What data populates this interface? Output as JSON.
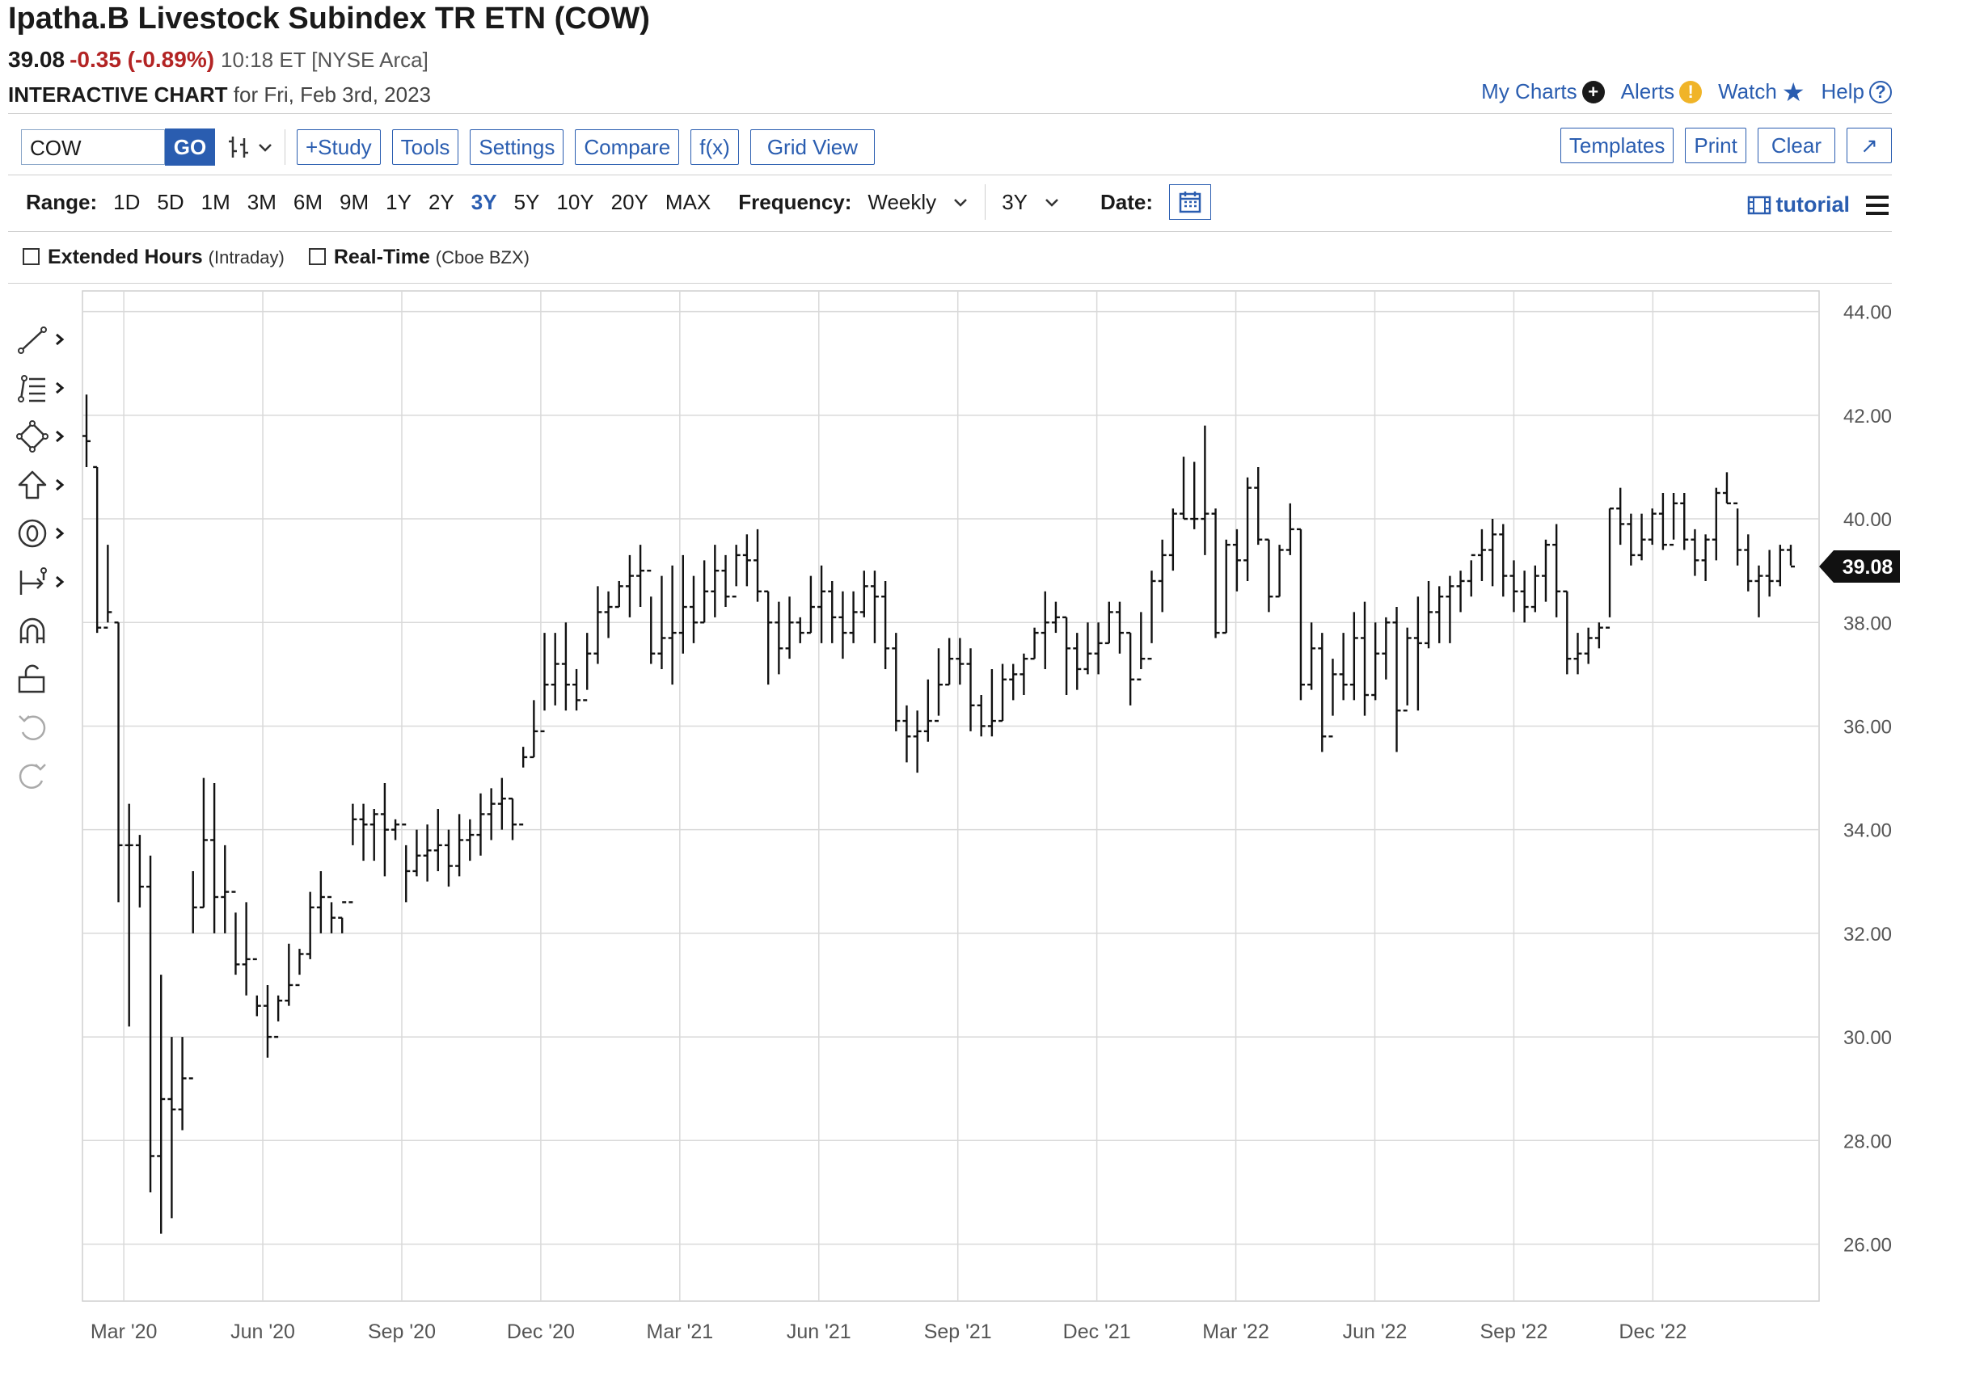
{
  "header": {
    "title": "Ipatha.B Livestock Subindex TR ETN (COW)",
    "last": "39.08",
    "change": "-0.35 (-0.89%)",
    "meta": "10:18 ET [NYSE Arca]",
    "chart_label": "INTERACTIVE CHART",
    "chart_date": "for Fri, Feb 3rd, 2023"
  },
  "links": {
    "my_charts": "My Charts",
    "alerts": "Alerts",
    "watch": "Watch",
    "help": "Help",
    "plus_glyph": "+",
    "alert_glyph": "!",
    "help_glyph": "?"
  },
  "toolbar": {
    "symbol": "COW",
    "go": "GO",
    "study": "+Study",
    "tools": "Tools",
    "settings": "Settings",
    "compare": "Compare",
    "fx": "f(x)",
    "grid_view": "Grid View",
    "templates": "Templates",
    "print": "Print",
    "clear": "Clear",
    "expand": "↗"
  },
  "range": {
    "label": "Range:",
    "options": [
      "1D",
      "5D",
      "1M",
      "3M",
      "6M",
      "9M",
      "1Y",
      "2Y",
      "3Y",
      "5Y",
      "10Y",
      "20Y",
      "MAX"
    ],
    "selected": "3Y",
    "frequency_label": "Frequency:",
    "frequency": "Weekly",
    "period": "3Y",
    "date_label": "Date:",
    "tutorial": "tutorial"
  },
  "options": {
    "extended": "Extended Hours",
    "extended_note": "(Intraday)",
    "realtime": "Real-Time",
    "realtime_note": "(Cboe BZX)"
  },
  "icons": [
    "line-tool-icon",
    "fibonacci-icon",
    "shapes-icon",
    "arrow-icon",
    "text-marker-icon",
    "measure-icon",
    "magnet-icon",
    "lock-icon",
    "undo-icon",
    "redo-icon"
  ],
  "colors": {
    "accent": "#2a5db0",
    "negative": "#b32424",
    "bar": "#111111",
    "grid": "#d9d9d9"
  },
  "chart_data": {
    "type": "ohlc",
    "frequency": "weekly",
    "x_labels": [
      "Mar '20",
      "Jun '20",
      "Sep '20",
      "Dec '20",
      "Mar '21",
      "Jun '21",
      "Sep '21",
      "Dec '21",
      "Mar '22",
      "Jun '22",
      "Sep '22",
      "Dec '22"
    ],
    "y_ticks": [
      "44.00",
      "42.00",
      "40.00",
      "38.00",
      "36.00",
      "34.00",
      "32.00",
      "30.00",
      "28.00",
      "26.00"
    ],
    "ylim": [
      24.9,
      44.4
    ],
    "last_price_label": "39.08",
    "grid": true,
    "bars": [
      [
        41.6,
        42.4,
        41.0,
        41.5
      ],
      [
        41.0,
        41.0,
        37.8,
        37.9
      ],
      [
        37.9,
        39.5,
        38.0,
        38.2
      ],
      [
        38.0,
        38.0,
        32.6,
        33.7
      ],
      [
        33.7,
        34.5,
        30.2,
        33.7
      ],
      [
        33.7,
        33.9,
        32.5,
        32.9
      ],
      [
        32.9,
        33.5,
        27.0,
        27.7
      ],
      [
        27.7,
        31.2,
        26.2,
        28.8
      ],
      [
        28.8,
        30.0,
        26.5,
        28.6
      ],
      [
        28.6,
        30.0,
        28.2,
        29.2
      ],
      [
        29.2,
        33.2,
        32.0,
        32.5
      ],
      [
        32.5,
        35.0,
        32.5,
        33.8
      ],
      [
        33.8,
        34.9,
        32.0,
        32.7
      ],
      [
        32.7,
        33.7,
        32.0,
        32.8
      ],
      [
        32.8,
        32.4,
        31.2,
        31.4
      ],
      [
        31.4,
        32.6,
        30.8,
        31.5
      ],
      [
        31.5,
        30.8,
        30.4,
        30.6
      ],
      [
        30.6,
        31.0,
        29.6,
        30.0
      ],
      [
        30.0,
        30.8,
        30.3,
        30.7
      ],
      [
        30.7,
        31.8,
        30.6,
        31.0
      ],
      [
        31.0,
        31.7,
        31.2,
        31.6
      ],
      [
        31.6,
        32.8,
        31.5,
        32.5
      ],
      [
        32.5,
        33.2,
        32.0,
        32.7
      ],
      [
        32.7,
        32.6,
        32.0,
        32.3
      ],
      [
        32.3,
        32.3,
        32.0,
        32.6
      ],
      [
        32.6,
        34.5,
        33.7,
        34.2
      ],
      [
        34.2,
        34.5,
        33.4,
        34.1
      ],
      [
        34.1,
        34.4,
        33.4,
        34.3
      ],
      [
        34.3,
        34.9,
        33.1,
        34.0
      ],
      [
        34.0,
        34.2,
        33.8,
        34.1
      ],
      [
        34.1,
        33.7,
        32.6,
        33.2
      ],
      [
        33.2,
        34.0,
        33.1,
        33.5
      ],
      [
        33.5,
        34.1,
        33.0,
        33.6
      ],
      [
        33.6,
        34.4,
        33.2,
        33.7
      ],
      [
        33.7,
        34.0,
        32.9,
        33.3
      ],
      [
        33.3,
        34.3,
        33.1,
        33.8
      ],
      [
        33.8,
        34.2,
        33.4,
        33.9
      ],
      [
        33.9,
        34.7,
        33.5,
        34.3
      ],
      [
        34.3,
        34.8,
        33.8,
        34.5
      ],
      [
        34.5,
        35.0,
        34.0,
        34.6
      ],
      [
        34.6,
        34.6,
        33.8,
        34.1
      ],
      [
        34.1,
        35.6,
        35.2,
        35.4
      ],
      [
        35.4,
        36.5,
        35.4,
        35.9
      ],
      [
        35.9,
        37.8,
        36.3,
        36.8
      ],
      [
        36.8,
        37.8,
        36.4,
        37.2
      ],
      [
        37.2,
        38.0,
        36.3,
        36.8
      ],
      [
        36.8,
        37.1,
        36.3,
        36.5
      ],
      [
        36.5,
        37.8,
        36.7,
        37.4
      ],
      [
        37.4,
        38.7,
        37.2,
        38.2
      ],
      [
        38.2,
        38.6,
        37.7,
        38.3
      ],
      [
        38.3,
        38.8,
        38.3,
        38.7
      ],
      [
        38.7,
        39.3,
        38.1,
        38.9
      ],
      [
        38.9,
        39.5,
        38.3,
        39.0
      ],
      [
        39.0,
        38.5,
        37.2,
        37.4
      ],
      [
        37.4,
        38.9,
        37.1,
        37.7
      ],
      [
        37.7,
        39.1,
        36.8,
        37.8
      ],
      [
        37.8,
        39.3,
        37.4,
        38.3
      ],
      [
        38.3,
        38.9,
        37.6,
        38.0
      ],
      [
        38.0,
        39.2,
        38.0,
        38.6
      ],
      [
        38.6,
        39.5,
        38.1,
        39.0
      ],
      [
        39.0,
        39.3,
        38.3,
        38.5
      ],
      [
        38.5,
        39.5,
        38.7,
        39.3
      ],
      [
        39.3,
        39.7,
        38.7,
        39.2
      ],
      [
        39.2,
        39.8,
        38.4,
        38.6
      ],
      [
        38.6,
        38.6,
        36.8,
        38.0
      ],
      [
        38.0,
        38.4,
        37.0,
        37.5
      ],
      [
        37.5,
        38.5,
        37.3,
        38.0
      ],
      [
        38.0,
        38.1,
        37.6,
        37.8
      ],
      [
        37.8,
        38.9,
        37.8,
        38.3
      ],
      [
        38.3,
        39.1,
        37.6,
        38.6
      ],
      [
        38.6,
        38.8,
        37.6,
        38.1
      ],
      [
        38.1,
        38.6,
        37.3,
        37.8
      ],
      [
        37.8,
        38.6,
        37.6,
        38.2
      ],
      [
        38.2,
        39.0,
        38.1,
        38.7
      ],
      [
        38.7,
        39.0,
        37.6,
        38.5
      ],
      [
        38.5,
        38.8,
        37.1,
        37.5
      ],
      [
        37.5,
        37.8,
        35.9,
        36.1
      ],
      [
        36.1,
        36.4,
        35.3,
        35.8
      ],
      [
        35.8,
        36.3,
        35.1,
        35.9
      ],
      [
        35.9,
        36.9,
        35.7,
        36.1
      ],
      [
        36.1,
        37.5,
        36.2,
        36.8
      ],
      [
        36.8,
        37.7,
        36.8,
        37.3
      ],
      [
        37.3,
        37.7,
        36.8,
        37.2
      ],
      [
        37.2,
        37.5,
        35.9,
        36.4
      ],
      [
        36.4,
        36.6,
        35.8,
        36.0
      ],
      [
        36.0,
        37.1,
        35.8,
        36.1
      ],
      [
        36.1,
        37.2,
        36.1,
        36.9
      ],
      [
        36.9,
        37.2,
        36.5,
        37.0
      ],
      [
        37.0,
        37.4,
        36.6,
        37.3
      ],
      [
        37.3,
        37.9,
        37.3,
        37.8
      ],
      [
        37.8,
        38.6,
        37.1,
        38.0
      ],
      [
        38.0,
        38.4,
        37.8,
        38.1
      ],
      [
        38.1,
        38.1,
        36.6,
        37.5
      ],
      [
        37.5,
        37.8,
        36.7,
        37.1
      ],
      [
        37.1,
        38.0,
        37.0,
        37.4
      ],
      [
        37.4,
        38.0,
        37.0,
        37.6
      ],
      [
        37.6,
        38.4,
        37.6,
        38.2
      ],
      [
        38.2,
        38.4,
        37.4,
        37.8
      ],
      [
        37.8,
        37.8,
        36.4,
        36.9
      ],
      [
        36.9,
        38.2,
        37.1,
        37.3
      ],
      [
        37.3,
        39.0,
        37.6,
        38.8
      ],
      [
        38.8,
        39.6,
        38.2,
        39.3
      ],
      [
        39.3,
        40.2,
        39.0,
        40.1
      ],
      [
        40.1,
        41.2,
        40.0,
        40.0
      ],
      [
        40.0,
        41.1,
        39.8,
        40.0
      ],
      [
        40.0,
        41.8,
        39.3,
        40.1
      ],
      [
        40.1,
        40.2,
        37.7,
        37.8
      ],
      [
        37.8,
        39.6,
        37.8,
        39.5
      ],
      [
        39.5,
        39.8,
        38.6,
        39.2
      ],
      [
        39.2,
        40.8,
        38.8,
        40.6
      ],
      [
        40.6,
        41.0,
        39.5,
        39.6
      ],
      [
        39.6,
        39.6,
        38.2,
        38.5
      ],
      [
        38.5,
        39.5,
        38.5,
        39.4
      ],
      [
        39.4,
        40.3,
        39.3,
        39.8
      ],
      [
        39.8,
        39.8,
        36.5,
        36.8
      ],
      [
        36.8,
        38.0,
        36.7,
        37.5
      ],
      [
        37.5,
        37.8,
        35.5,
        35.8
      ],
      [
        35.8,
        37.3,
        36.2,
        37.0
      ],
      [
        37.0,
        37.8,
        36.5,
        36.8
      ],
      [
        36.8,
        38.2,
        36.5,
        37.7
      ],
      [
        37.7,
        38.4,
        36.2,
        36.6
      ],
      [
        36.6,
        38.0,
        36.5,
        37.4
      ],
      [
        37.4,
        38.1,
        36.9,
        38.0
      ],
      [
        38.0,
        38.3,
        35.5,
        36.3
      ],
      [
        36.3,
        37.9,
        36.4,
        37.7
      ],
      [
        37.7,
        38.5,
        36.3,
        37.6
      ],
      [
        37.6,
        38.8,
        37.5,
        38.2
      ],
      [
        38.2,
        38.7,
        37.6,
        38.5
      ],
      [
        38.5,
        38.9,
        37.6,
        38.7
      ],
      [
        38.7,
        39.0,
        38.2,
        38.8
      ],
      [
        38.8,
        39.2,
        38.5,
        39.3
      ],
      [
        39.3,
        39.8,
        38.8,
        39.4
      ],
      [
        39.4,
        40.0,
        38.7,
        39.7
      ],
      [
        39.7,
        39.9,
        38.5,
        38.9
      ],
      [
        38.9,
        39.2,
        38.2,
        38.6
      ],
      [
        38.6,
        39.0,
        38.0,
        38.3
      ],
      [
        38.3,
        39.1,
        38.2,
        38.9
      ],
      [
        38.9,
        39.6,
        38.4,
        39.5
      ],
      [
        39.5,
        39.9,
        38.1,
        38.6
      ],
      [
        38.6,
        38.6,
        37.0,
        37.3
      ],
      [
        37.3,
        37.8,
        37.0,
        37.4
      ],
      [
        37.4,
        37.9,
        37.2,
        37.7
      ],
      [
        37.7,
        38.0,
        37.5,
        37.9
      ],
      [
        37.9,
        40.2,
        38.1,
        40.2
      ],
      [
        40.2,
        40.6,
        39.5,
        39.9
      ],
      [
        39.9,
        40.1,
        39.1,
        39.3
      ],
      [
        39.3,
        40.1,
        39.2,
        39.6
      ],
      [
        39.6,
        40.2,
        39.5,
        40.1
      ],
      [
        40.1,
        40.5,
        39.4,
        39.5
      ],
      [
        39.5,
        40.5,
        39.6,
        40.3
      ],
      [
        40.3,
        40.5,
        39.4,
        39.6
      ],
      [
        39.6,
        39.8,
        38.9,
        39.2
      ],
      [
        39.2,
        39.7,
        38.8,
        39.6
      ],
      [
        39.6,
        40.6,
        39.2,
        40.5
      ],
      [
        40.5,
        40.9,
        40.3,
        40.3
      ],
      [
        40.3,
        40.2,
        39.1,
        39.4
      ],
      [
        39.4,
        39.7,
        38.6,
        38.8
      ],
      [
        38.8,
        39.1,
        38.1,
        38.9
      ],
      [
        38.9,
        39.4,
        38.5,
        38.8
      ],
      [
        38.8,
        39.5,
        38.7,
        39.4
      ],
      [
        39.4,
        39.5,
        39.1,
        39.08
      ]
    ]
  }
}
